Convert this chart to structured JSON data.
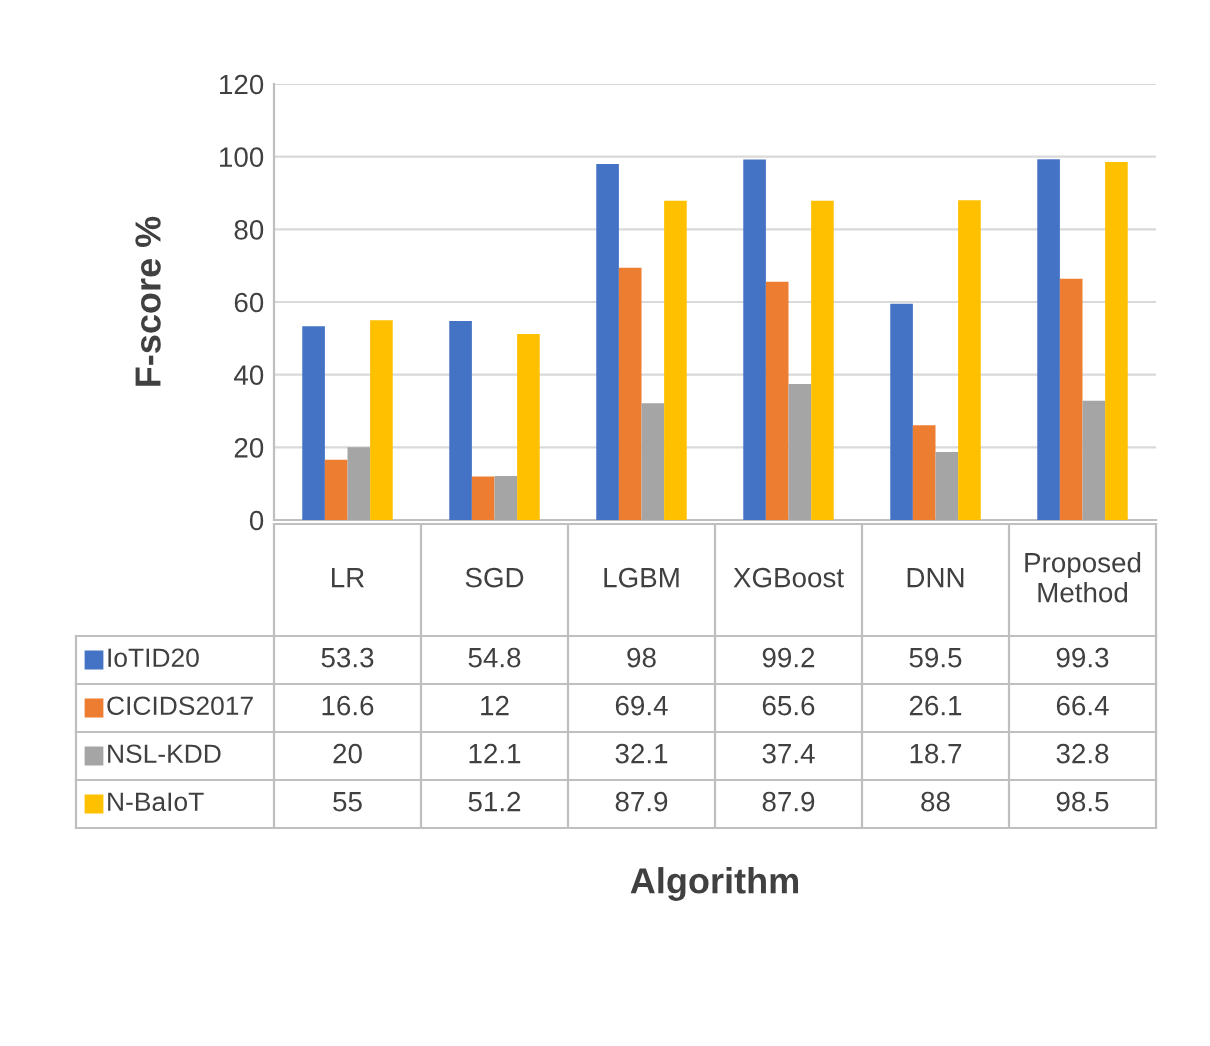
{
  "chart_data": {
    "type": "bar",
    "ylabel": "F-score %",
    "annotations": [
      "Algorithm"
    ],
    "categories": [
      "LR",
      "SGD",
      "LGBM",
      "XGBoost",
      "DNN",
      "Proposed Method"
    ],
    "series": [
      {
        "name": "IoTID20",
        "color": "#4472c4",
        "values": [
          53.3,
          54.8,
          98,
          99.2,
          59.5,
          99.3
        ]
      },
      {
        "name": "CICIDS2017",
        "color": "#ed7d31",
        "values": [
          16.6,
          12,
          69.4,
          65.6,
          26.1,
          66.4
        ]
      },
      {
        "name": "NSL-KDD",
        "color": "#a5a5a5",
        "values": [
          20,
          12.1,
          32.1,
          37.4,
          18.7,
          32.8
        ]
      },
      {
        "name": "N-BaIoT",
        "color": "#ffc000",
        "values": [
          55,
          51.2,
          87.9,
          87.9,
          88,
          98.5
        ]
      }
    ],
    "ylim": [
      0,
      120
    ],
    "yticks": [
      0,
      20,
      40,
      60,
      80,
      100,
      120
    ],
    "grid": "y",
    "legend": "bottom",
    "data_labels": true
  }
}
